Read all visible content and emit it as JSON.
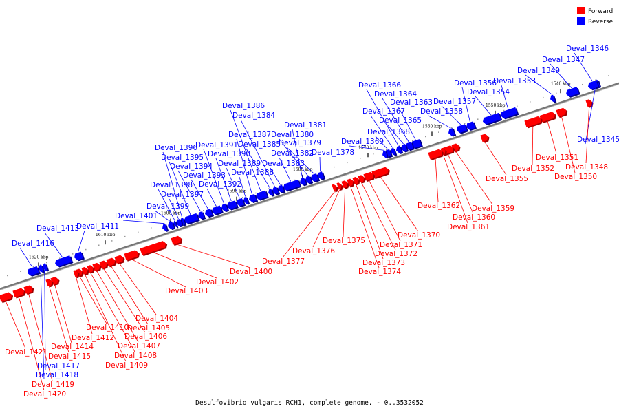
{
  "caption": "Desulfovibrio vulgaris RCH1, complete genome. - 0..3532052",
  "legend": [
    {
      "label": "Forward",
      "color": "#ff0000"
    },
    {
      "label": "Reverse",
      "color": "#0000ff"
    }
  ],
  "colors": {
    "forward": "#ff0000",
    "reverse": "#0000ff",
    "backbone": "#777777"
  },
  "ticks": [
    "1540 kbp",
    "1550 kbp",
    "1560 kbp",
    "1570 kbp",
    "1580 kbp",
    "1590 kbp",
    "1600 kbp",
    "1610 kbp",
    "1620 kbp"
  ],
  "genes": [
    {
      "name": "Deval_1345",
      "strand": "reverse"
    },
    {
      "name": "Deval_1346",
      "strand": "reverse"
    },
    {
      "name": "Deval_1347",
      "strand": "reverse"
    },
    {
      "name": "Deval_1348",
      "strand": "forward"
    },
    {
      "name": "Deval_1349",
      "strand": "reverse"
    },
    {
      "name": "Deval_1350",
      "strand": "forward"
    },
    {
      "name": "Deval_1351",
      "strand": "forward"
    },
    {
      "name": "Deval_1352",
      "strand": "forward"
    },
    {
      "name": "Deval_1353",
      "strand": "reverse"
    },
    {
      "name": "Deval_1354",
      "strand": "reverse"
    },
    {
      "name": "Deval_1355",
      "strand": "forward"
    },
    {
      "name": "Deval_1356",
      "strand": "reverse"
    },
    {
      "name": "Deval_1357",
      "strand": "reverse"
    },
    {
      "name": "Deval_1358",
      "strand": "reverse"
    },
    {
      "name": "Deval_1359",
      "strand": "forward"
    },
    {
      "name": "Deval_1360",
      "strand": "forward"
    },
    {
      "name": "Deval_1361",
      "strand": "forward"
    },
    {
      "name": "Deval_1362",
      "strand": "forward"
    },
    {
      "name": "Deval_1363",
      "strand": "reverse"
    },
    {
      "name": "Deval_1364",
      "strand": "reverse"
    },
    {
      "name": "Deval_1365",
      "strand": "reverse"
    },
    {
      "name": "Deval_1366",
      "strand": "reverse"
    },
    {
      "name": "Deval_1367",
      "strand": "reverse"
    },
    {
      "name": "Deval_1368",
      "strand": "reverse"
    },
    {
      "name": "Deval_1369",
      "strand": "reverse"
    },
    {
      "name": "Deval_1370",
      "strand": "forward"
    },
    {
      "name": "Deval_1371",
      "strand": "forward"
    },
    {
      "name": "Deval_1372",
      "strand": "forward"
    },
    {
      "name": "Deval_1373",
      "strand": "forward"
    },
    {
      "name": "Deval_1374",
      "strand": "forward"
    },
    {
      "name": "Deval_1375",
      "strand": "forward"
    },
    {
      "name": "Deval_1376",
      "strand": "forward"
    },
    {
      "name": "Deval_1377",
      "strand": "forward"
    },
    {
      "name": "Deval_1378",
      "strand": "reverse"
    },
    {
      "name": "Deval_1379",
      "strand": "reverse"
    },
    {
      "name": "Deval_1380",
      "strand": "reverse"
    },
    {
      "name": "Deval_1381",
      "strand": "reverse"
    },
    {
      "name": "Deval_1382",
      "strand": "reverse"
    },
    {
      "name": "Deval_1383",
      "strand": "reverse"
    },
    {
      "name": "Deval_1384",
      "strand": "reverse"
    },
    {
      "name": "Deval_1385",
      "strand": "reverse"
    },
    {
      "name": "Deval_1386",
      "strand": "reverse"
    },
    {
      "name": "Deval_1387",
      "strand": "reverse"
    },
    {
      "name": "Deval_1388",
      "strand": "reverse"
    },
    {
      "name": "Deval_1389",
      "strand": "reverse"
    },
    {
      "name": "Deval_1390",
      "strand": "reverse"
    },
    {
      "name": "Deval_1391",
      "strand": "reverse"
    },
    {
      "name": "Deval_1392",
      "strand": "reverse"
    },
    {
      "name": "Deval_1393",
      "strand": "reverse"
    },
    {
      "name": "Deval_1394",
      "strand": "reverse"
    },
    {
      "name": "Deval_1395",
      "strand": "reverse"
    },
    {
      "name": "Deval_1396",
      "strand": "reverse"
    },
    {
      "name": "Deval_1397",
      "strand": "reverse"
    },
    {
      "name": "Deval_1398",
      "strand": "reverse"
    },
    {
      "name": "Deval_1399",
      "strand": "reverse"
    },
    {
      "name": "Deval_1400",
      "strand": "forward"
    },
    {
      "name": "Deval_1401",
      "strand": "reverse"
    },
    {
      "name": "Deval_1402",
      "strand": "forward"
    },
    {
      "name": "Deval_1403",
      "strand": "forward"
    },
    {
      "name": "Deval_1404",
      "strand": "forward"
    },
    {
      "name": "Deval_1405",
      "strand": "forward"
    },
    {
      "name": "Deval_1406",
      "strand": "forward"
    },
    {
      "name": "Deval_1407",
      "strand": "forward"
    },
    {
      "name": "Deval_1408",
      "strand": "forward"
    },
    {
      "name": "Deval_1409",
      "strand": "forward"
    },
    {
      "name": "Deval_1410",
      "strand": "forward"
    },
    {
      "name": "Deval_1411",
      "strand": "reverse"
    },
    {
      "name": "Deval_1412",
      "strand": "forward"
    },
    {
      "name": "Deval_1413",
      "strand": "reverse"
    },
    {
      "name": "Deval_1414",
      "strand": "forward"
    },
    {
      "name": "Deval_1415",
      "strand": "forward"
    },
    {
      "name": "Deval_1416",
      "strand": "reverse"
    },
    {
      "name": "Deval_1417",
      "strand": "reverse"
    },
    {
      "name": "Deval_1418",
      "strand": "reverse"
    },
    {
      "name": "Deval_1419",
      "strand": "forward"
    },
    {
      "name": "Deval_1420",
      "strand": "forward"
    },
    {
      "name": "Deval_1421",
      "strand": "forward"
    }
  ]
}
